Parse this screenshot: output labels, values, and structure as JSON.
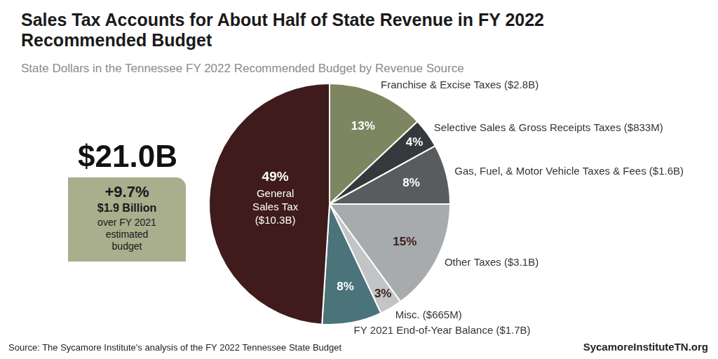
{
  "chart_data": {
    "type": "pie",
    "title": "Sales Tax Accounts for About Half of State Revenue in FY 2022 Recommended Budget",
    "subtitle": "State Dollars in the Tennessee FY 2022 Recommended Budget by Revenue Source",
    "categories": [
      "Franchise & Excise Taxes ($2.8B)",
      "Selective Sales & Gross Receipts Taxes ($833M)",
      "Gas, Fuel, & Motor Vehicle Taxes & Fees ($1.6B)",
      "Other Taxes ($3.1B)",
      "Misc. ($665M)",
      "FY 2021 End-of-Year Balance ($1.7B)",
      "General Sales Tax ($10.3B)"
    ],
    "values": [
      13,
      4,
      8,
      15,
      3,
      8,
      49
    ],
    "value_labels": [
      "13%",
      "4%",
      "8%",
      "15%",
      "3%",
      "8%",
      "49%"
    ],
    "colors": [
      "#7d8660",
      "#36393b",
      "#595c5f",
      "#a8abad",
      "#c2c4c6",
      "#4a737a",
      "#3f1b1b"
    ],
    "data_labels": true,
    "callout": [
      "$21.0B",
      "+9.7%",
      "$1.9 Billion",
      "over FY 2021 estimated budget"
    ],
    "source": "Source: The Sycamore Institute's analysis of the FY 2022 Tennessee State Budget",
    "credit": "SycamoreInstituteTN.org"
  }
}
